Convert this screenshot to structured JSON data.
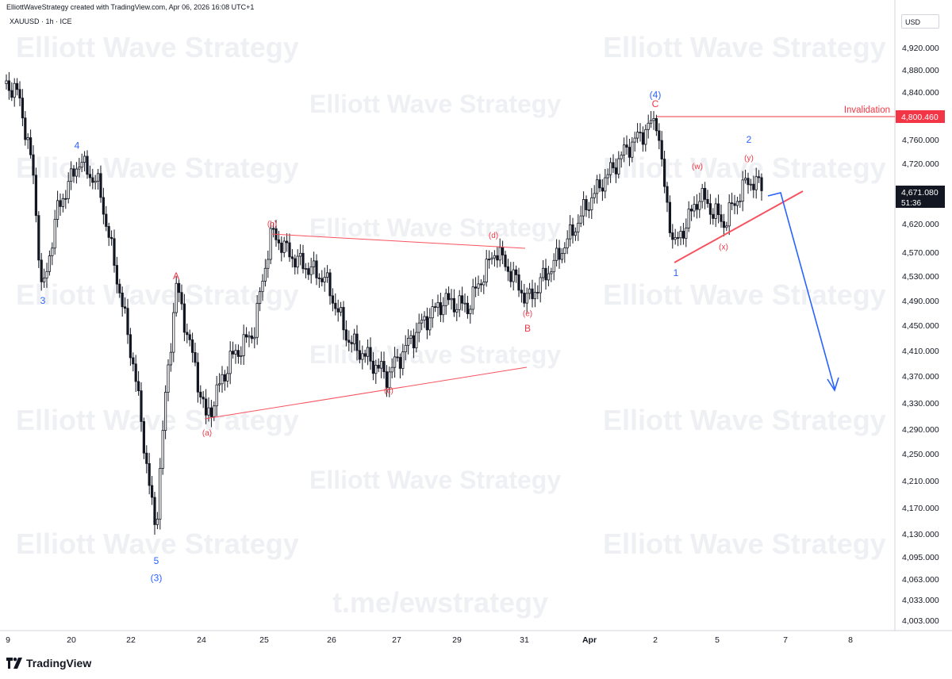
{
  "header": {
    "credit": "ElliottWaveStrategy created with TradingView.com, Apr 06, 2026 16:08 UTC+1",
    "symbol": "XAUUSD · 1h · ICE",
    "currency": "USD"
  },
  "watermarks": {
    "text": "Elliott Wave Strategy",
    "link": "t.me/ewstrategy"
  },
  "brand": {
    "name": "TradingView"
  },
  "colors": {
    "candle": "#131722",
    "wave_blue": "#2962ff",
    "wave_red": "#f23645",
    "triangle_line": "#f7525f",
    "projection": "#2962ff"
  },
  "chart_data": {
    "type": "candlestick",
    "instrument": "XAUUSD",
    "timeframe": "1h",
    "y_axis": {
      "ticks": [
        "4,920.000",
        "4,880.000",
        "4,840.000",
        "4,800.000",
        "4,760.000",
        "4,720.000",
        "4,670.000",
        "4,620.000",
        "4,570.000",
        "4,530.000",
        "4,490.000",
        "4,450.000",
        "4,410.000",
        "4,370.000",
        "4,330.000",
        "4,290.000",
        "4,250.000",
        "4,210.000",
        "4,170.000",
        "4,130.000",
        "4,095.000",
        "4,063.000",
        "4,033.000",
        "4,003.000"
      ]
    },
    "x_axis": {
      "ticks": [
        "9",
        "20",
        "22",
        "24",
        "25",
        "26",
        "27",
        "29",
        "31",
        "Apr",
        "2",
        "5",
        "7",
        "8"
      ]
    },
    "current_price": {
      "label": "4,671.080",
      "countdown": "51:36"
    },
    "invalidation": {
      "label": "Invalidation",
      "price_label": "4,800.460",
      "price": 4800.46
    },
    "wave_labels": [
      {
        "text": "3",
        "color": "blue",
        "price": 4485
      },
      {
        "text": "4",
        "color": "blue",
        "price": 4745
      },
      {
        "text": "5",
        "color": "blue",
        "price": 4085
      },
      {
        "text": "(3)",
        "color": "blue",
        "price": 4060
      },
      {
        "text": "A",
        "color": "red",
        "price": 4525
      },
      {
        "text": "(a)",
        "color": "red",
        "price": 4280
      },
      {
        "text": "(b)",
        "color": "red",
        "price": 4615
      },
      {
        "text": "(c)",
        "color": "red",
        "price": 4345
      },
      {
        "text": "(d)",
        "color": "red",
        "price": 4595
      },
      {
        "text": "(e)",
        "color": "red",
        "price": 4465
      },
      {
        "text": "B",
        "color": "red",
        "price": 4440
      },
      {
        "text": "(4)",
        "color": "blue",
        "price": 4830
      },
      {
        "text": "C",
        "color": "red",
        "price": 4815
      },
      {
        "text": "1",
        "color": "blue",
        "price": 4530
      },
      {
        "text": "(w)",
        "color": "red",
        "price": 4710
      },
      {
        "text": "(x)",
        "color": "red",
        "price": 4575
      },
      {
        "text": "2",
        "color": "blue",
        "price": 4755
      },
      {
        "text": "(y)",
        "color": "red",
        "price": 4725
      }
    ],
    "candles_ohlc": []
  }
}
